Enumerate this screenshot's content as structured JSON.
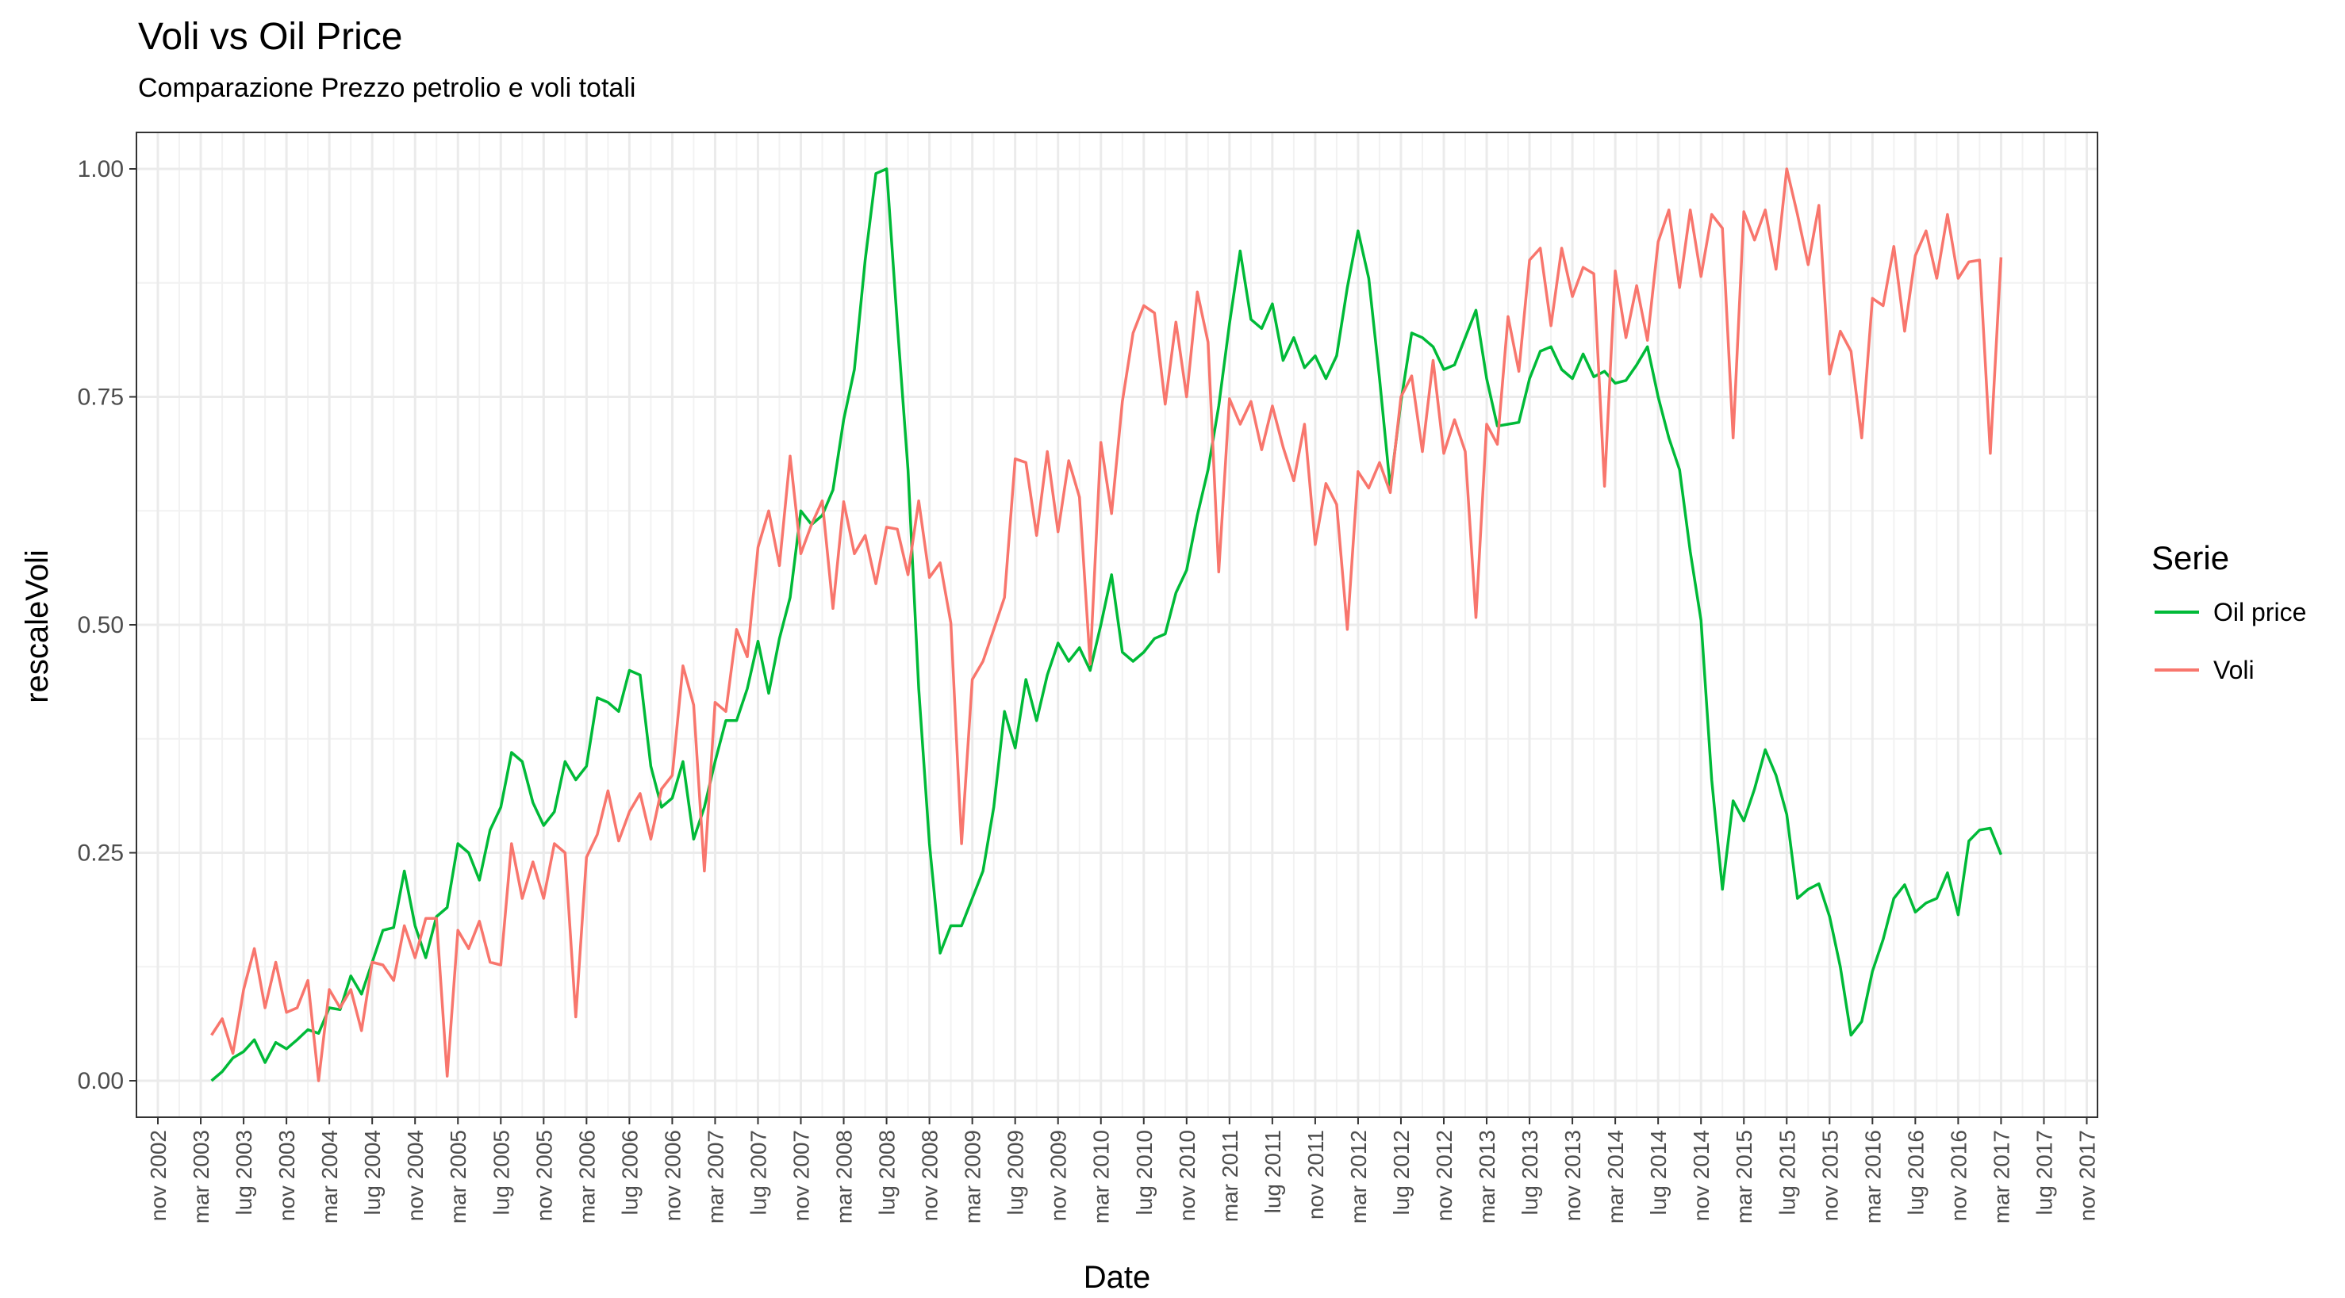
{
  "chart_data": {
    "type": "line",
    "title": "Voli vs Oil Price",
    "subtitle": "Comparazione Prezzo petrolio e voli totali",
    "xlabel": "Date",
    "ylabel": "rescaleVoli",
    "ylim": [
      -0.04,
      1.04
    ],
    "y_ticks": [
      "0.00",
      "0.25",
      "0.50",
      "0.75",
      "1.00"
    ],
    "y_tick_values": [
      0,
      0.25,
      0.5,
      0.75,
      1.0
    ],
    "x_range": [
      "2002-09",
      "2017-12"
    ],
    "x_tick_labels": [
      "nov 2002",
      "mar 2003",
      "lug 2003",
      "nov 2003",
      "mar 2004",
      "lug 2004",
      "nov 2004",
      "mar 2005",
      "lug 2005",
      "nov 2005",
      "mar 2006",
      "lug 2006",
      "nov 2006",
      "mar 2007",
      "lug 2007",
      "nov 2007",
      "mar 2008",
      "lug 2008",
      "nov 2008",
      "mar 2009",
      "lug 2009",
      "nov 2009",
      "mar 2010",
      "lug 2010",
      "nov 2010",
      "mar 2011",
      "lug 2011",
      "nov 2011",
      "mar 2012",
      "lug 2012",
      "nov 2012",
      "mar 2013",
      "lug 2013",
      "nov 2013",
      "mar 2014",
      "lug 2014",
      "nov 2014",
      "mar 2015",
      "lug 2015",
      "nov 2015",
      "mar 2016",
      "lug 2016",
      "nov 2016",
      "mar 2017",
      "lug 2017",
      "nov 2017"
    ],
    "x_tick_dates": [
      "2002-11",
      "2003-03",
      "2003-07",
      "2003-11",
      "2004-03",
      "2004-07",
      "2004-11",
      "2005-03",
      "2005-07",
      "2005-11",
      "2006-03",
      "2006-07",
      "2006-11",
      "2007-03",
      "2007-07",
      "2007-11",
      "2008-03",
      "2008-07",
      "2008-11",
      "2009-03",
      "2009-07",
      "2009-11",
      "2010-03",
      "2010-07",
      "2010-11",
      "2011-03",
      "2011-07",
      "2011-11",
      "2012-03",
      "2012-07",
      "2012-11",
      "2013-03",
      "2013-07",
      "2013-11",
      "2014-03",
      "2014-07",
      "2014-11",
      "2015-03",
      "2015-07",
      "2015-11",
      "2016-03",
      "2016-07",
      "2016-11",
      "2017-03",
      "2017-07",
      "2017-11"
    ],
    "grid": true,
    "legend": {
      "title": "Serie",
      "placement": "right"
    },
    "series": [
      {
        "name": "Oil price",
        "color": "#00ba38",
        "x": [
          "2003-04",
          "2003-05",
          "2003-06",
          "2003-07",
          "2003-08",
          "2003-09",
          "2003-10",
          "2003-11",
          "2003-12",
          "2004-01",
          "2004-02",
          "2004-03",
          "2004-04",
          "2004-05",
          "2004-06",
          "2004-07",
          "2004-08",
          "2004-09",
          "2004-10",
          "2004-11",
          "2004-12",
          "2005-01",
          "2005-02",
          "2005-03",
          "2005-04",
          "2005-05",
          "2005-06",
          "2005-07",
          "2005-08",
          "2005-09",
          "2005-10",
          "2005-11",
          "2005-12",
          "2006-01",
          "2006-02",
          "2006-03",
          "2006-04",
          "2006-05",
          "2006-06",
          "2006-07",
          "2006-08",
          "2006-09",
          "2006-10",
          "2006-11",
          "2006-12",
          "2007-01",
          "2007-02",
          "2007-03",
          "2007-04",
          "2007-05",
          "2007-06",
          "2007-07",
          "2007-08",
          "2007-09",
          "2007-10",
          "2007-11",
          "2007-12",
          "2008-01",
          "2008-02",
          "2008-03",
          "2008-04",
          "2008-05",
          "2008-06",
          "2008-07",
          "2008-08",
          "2008-09",
          "2008-10",
          "2008-11",
          "2008-12",
          "2009-01",
          "2009-02",
          "2009-03",
          "2009-04",
          "2009-05",
          "2009-06",
          "2009-07",
          "2009-08",
          "2009-09",
          "2009-10",
          "2009-11",
          "2009-12",
          "2010-01",
          "2010-02",
          "2010-03",
          "2010-04",
          "2010-05",
          "2010-06",
          "2010-07",
          "2010-08",
          "2010-09",
          "2010-10",
          "2010-11",
          "2010-12",
          "2011-01",
          "2011-02",
          "2011-03",
          "2011-04",
          "2011-05",
          "2011-06",
          "2011-07",
          "2011-08",
          "2011-09",
          "2011-10",
          "2011-11",
          "2011-12",
          "2012-01",
          "2012-02",
          "2012-03",
          "2012-04",
          "2012-05",
          "2012-06",
          "2012-07",
          "2012-08",
          "2012-09",
          "2012-10",
          "2012-11",
          "2012-12",
          "2013-01",
          "2013-02",
          "2013-03",
          "2013-04",
          "2013-05",
          "2013-06",
          "2013-07",
          "2013-08",
          "2013-09",
          "2013-10",
          "2013-11",
          "2013-12",
          "2014-01",
          "2014-02",
          "2014-03",
          "2014-04",
          "2014-05",
          "2014-06",
          "2014-07",
          "2014-08",
          "2014-09",
          "2014-10",
          "2014-11",
          "2014-12",
          "2015-01",
          "2015-02",
          "2015-03",
          "2015-04",
          "2015-05",
          "2015-06",
          "2015-07",
          "2015-08",
          "2015-09",
          "2015-10",
          "2015-11",
          "2015-12",
          "2016-01",
          "2016-02",
          "2016-03",
          "2016-04",
          "2016-05",
          "2016-06",
          "2016-07",
          "2016-08",
          "2016-09",
          "2016-10",
          "2016-11",
          "2016-12",
          "2017-01",
          "2017-02",
          "2017-03"
        ],
        "values": [
          0.0,
          0.01,
          0.025,
          0.032,
          0.045,
          0.02,
          0.042,
          0.035,
          0.045,
          0.056,
          0.052,
          0.08,
          0.078,
          0.115,
          0.095,
          0.13,
          0.165,
          0.168,
          0.23,
          0.17,
          0.135,
          0.18,
          0.19,
          0.26,
          0.25,
          0.22,
          0.275,
          0.3,
          0.36,
          0.35,
          0.305,
          0.28,
          0.295,
          0.35,
          0.33,
          0.345,
          0.42,
          0.415,
          0.405,
          0.45,
          0.445,
          0.345,
          0.3,
          0.31,
          0.35,
          0.265,
          0.3,
          0.35,
          0.395,
          0.395,
          0.43,
          0.482,
          0.425,
          0.485,
          0.53,
          0.625,
          0.61,
          0.62,
          0.648,
          0.725,
          0.78,
          0.9,
          0.995,
          1.0,
          0.83,
          0.67,
          0.43,
          0.26,
          0.14,
          0.17,
          0.17,
          0.2,
          0.23,
          0.3,
          0.405,
          0.365,
          0.44,
          0.395,
          0.445,
          0.48,
          0.46,
          0.475,
          0.45,
          0.5,
          0.555,
          0.47,
          0.46,
          0.47,
          0.485,
          0.49,
          0.535,
          0.56,
          0.62,
          0.67,
          0.74,
          0.83,
          0.91,
          0.835,
          0.825,
          0.852,
          0.79,
          0.815,
          0.782,
          0.795,
          0.77,
          0.795,
          0.87,
          0.932,
          0.88,
          0.77,
          0.65,
          0.745,
          0.82,
          0.815,
          0.805,
          0.78,
          0.785,
          0.815,
          0.845,
          0.77,
          0.718,
          0.72,
          0.722,
          0.77,
          0.8,
          0.805,
          0.78,
          0.77,
          0.797,
          0.772,
          0.778,
          0.765,
          0.768,
          0.785,
          0.805,
          0.75,
          0.705,
          0.67,
          0.58,
          0.505,
          0.33,
          0.21,
          0.307,
          0.285,
          0.32,
          0.363,
          0.335,
          0.292,
          0.2,
          0.21,
          0.216,
          0.18,
          0.125,
          0.05,
          0.065,
          0.12,
          0.155,
          0.2,
          0.215,
          0.185,
          0.195,
          0.2,
          0.228,
          0.182,
          0.263,
          0.275,
          0.277,
          0.248
        ]
      },
      {
        "name": "Voli",
        "color": "#f8766d",
        "x": [
          "2003-04",
          "2003-05",
          "2003-06",
          "2003-07",
          "2003-08",
          "2003-09",
          "2003-10",
          "2003-11",
          "2003-12",
          "2004-01",
          "2004-02",
          "2004-03",
          "2004-04",
          "2004-05",
          "2004-06",
          "2004-07",
          "2004-08",
          "2004-09",
          "2004-10",
          "2004-11",
          "2004-12",
          "2005-01",
          "2005-02",
          "2005-03",
          "2005-04",
          "2005-05",
          "2005-06",
          "2005-07",
          "2005-08",
          "2005-09",
          "2005-10",
          "2005-11",
          "2005-12",
          "2006-01",
          "2006-02",
          "2006-03",
          "2006-04",
          "2006-05",
          "2006-06",
          "2006-07",
          "2006-08",
          "2006-09",
          "2006-10",
          "2006-11",
          "2006-12",
          "2007-01",
          "2007-02",
          "2007-03",
          "2007-04",
          "2007-05",
          "2007-06",
          "2007-07",
          "2007-08",
          "2007-09",
          "2007-10",
          "2007-11",
          "2007-12",
          "2008-01",
          "2008-02",
          "2008-03",
          "2008-04",
          "2008-05",
          "2008-06",
          "2008-07",
          "2008-08",
          "2008-09",
          "2008-10",
          "2008-11",
          "2008-12",
          "2009-01",
          "2009-02",
          "2009-03",
          "2009-04",
          "2009-05",
          "2009-06",
          "2009-07",
          "2009-08",
          "2009-09",
          "2009-10",
          "2009-11",
          "2009-12",
          "2010-01",
          "2010-02",
          "2010-03",
          "2010-04",
          "2010-05",
          "2010-06",
          "2010-07",
          "2010-08",
          "2010-09",
          "2010-10",
          "2010-11",
          "2010-12",
          "2011-01",
          "2011-02",
          "2011-03",
          "2011-04",
          "2011-05",
          "2011-06",
          "2011-07",
          "2011-08",
          "2011-09",
          "2011-10",
          "2011-11",
          "2011-12",
          "2012-01",
          "2012-02",
          "2012-03",
          "2012-04",
          "2012-05",
          "2012-06",
          "2012-07",
          "2012-08",
          "2012-09",
          "2012-10",
          "2012-11",
          "2012-12",
          "2013-01",
          "2013-02",
          "2013-03",
          "2013-04",
          "2013-05",
          "2013-06",
          "2013-07",
          "2013-08",
          "2013-09",
          "2013-10",
          "2013-11",
          "2013-12",
          "2014-01",
          "2014-02",
          "2014-03",
          "2014-04",
          "2014-05",
          "2014-06",
          "2014-07",
          "2014-08",
          "2014-09",
          "2014-10",
          "2014-11",
          "2014-12",
          "2015-01",
          "2015-02",
          "2015-03",
          "2015-04",
          "2015-05",
          "2015-06",
          "2015-07",
          "2015-08",
          "2015-09",
          "2015-10",
          "2015-11",
          "2015-12",
          "2016-01",
          "2016-02",
          "2016-03",
          "2016-04",
          "2016-05",
          "2016-06",
          "2016-07",
          "2016-08",
          "2016-09",
          "2016-10",
          "2016-11",
          "2016-12",
          "2017-01",
          "2017-02",
          "2017-03"
        ],
        "values": [
          0.05,
          0.068,
          0.03,
          0.1,
          0.145,
          0.08,
          0.13,
          0.075,
          0.08,
          0.11,
          0.0,
          0.1,
          0.08,
          0.1,
          0.055,
          0.13,
          0.127,
          0.11,
          0.17,
          0.135,
          0.178,
          0.178,
          0.005,
          0.165,
          0.145,
          0.175,
          0.13,
          0.127,
          0.26,
          0.2,
          0.24,
          0.2,
          0.26,
          0.25,
          0.07,
          0.245,
          0.27,
          0.318,
          0.263,
          0.295,
          0.315,
          0.265,
          0.32,
          0.335,
          0.455,
          0.412,
          0.23,
          0.415,
          0.405,
          0.495,
          0.465,
          0.585,
          0.625,
          0.565,
          0.685,
          0.578,
          0.61,
          0.636,
          0.518,
          0.635,
          0.578,
          0.598,
          0.545,
          0.607,
          0.605,
          0.555,
          0.636,
          0.552,
          0.568,
          0.502,
          0.26,
          0.44,
          0.46,
          0.495,
          0.53,
          0.682,
          0.678,
          0.598,
          0.69,
          0.602,
          0.68,
          0.64,
          0.457,
          0.7,
          0.622,
          0.745,
          0.82,
          0.85,
          0.842,
          0.742,
          0.832,
          0.75,
          0.865,
          0.81,
          0.558,
          0.748,
          0.72,
          0.745,
          0.692,
          0.74,
          0.695,
          0.658,
          0.72,
          0.588,
          0.655,
          0.632,
          0.495,
          0.668,
          0.65,
          0.678,
          0.645,
          0.75,
          0.773,
          0.69,
          0.79,
          0.688,
          0.725,
          0.69,
          0.508,
          0.72,
          0.698,
          0.838,
          0.778,
          0.9,
          0.913,
          0.828,
          0.913,
          0.86,
          0.892,
          0.885,
          0.652,
          0.888,
          0.815,
          0.872,
          0.812,
          0.92,
          0.955,
          0.87,
          0.955,
          0.882,
          0.95,
          0.935,
          0.705,
          0.953,
          0.922,
          0.955,
          0.89,
          1.0,
          0.95,
          0.895,
          0.96,
          0.775,
          0.822,
          0.8,
          0.705,
          0.858,
          0.85,
          0.915,
          0.822,
          0.905,
          0.932,
          0.88,
          0.95,
          0.88,
          0.898,
          0.9,
          0.688,
          0.903
        ]
      }
    ]
  }
}
